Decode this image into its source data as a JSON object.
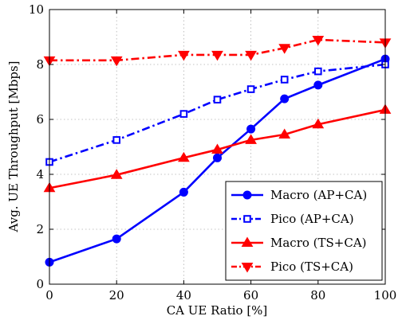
{
  "chart_data": {
    "type": "line",
    "title": "",
    "xlabel": "CA UE Ratio [%]",
    "ylabel": "Avg. UE Throughput [Mbps]",
    "xlim": [
      0,
      100
    ],
    "ylim": [
      0,
      10
    ],
    "xticks": [
      0,
      20,
      40,
      60,
      80,
      100
    ],
    "yticks": [
      0,
      2,
      4,
      6,
      8,
      10
    ],
    "grid": true,
    "legend_position": "bottom-right",
    "series": [
      {
        "name": "Macro (AP+CA)",
        "color": "#0000ff",
        "line_style": "solid",
        "marker": "circle",
        "x": [
          0,
          20,
          40,
          50,
          60,
          70,
          80,
          100
        ],
        "y": [
          0.8,
          1.65,
          3.35,
          4.6,
          5.65,
          6.75,
          7.25,
          8.2
        ]
      },
      {
        "name": "Pico (AP+CA)",
        "color": "#0000ff",
        "line_style": "dashdot",
        "marker": "square",
        "x": [
          0,
          20,
          40,
          50,
          60,
          70,
          80,
          100
        ],
        "y": [
          4.45,
          5.25,
          6.2,
          6.72,
          7.1,
          7.45,
          7.75,
          8.0
        ]
      },
      {
        "name": "Macro (TS+CA)",
        "color": "#ff0000",
        "line_style": "solid",
        "marker": "triangle-up",
        "x": [
          0,
          20,
          40,
          50,
          60,
          70,
          80,
          100
        ],
        "y": [
          3.5,
          3.98,
          4.6,
          4.9,
          5.25,
          5.45,
          5.82,
          6.35
        ]
      },
      {
        "name": "Pico (TS+CA)",
        "color": "#ff0000",
        "line_style": "dashdot",
        "marker": "triangle-down",
        "x": [
          0,
          20,
          40,
          50,
          60,
          70,
          80,
          100
        ],
        "y": [
          8.15,
          8.15,
          8.35,
          8.35,
          8.35,
          8.6,
          8.9,
          8.8
        ]
      }
    ]
  }
}
